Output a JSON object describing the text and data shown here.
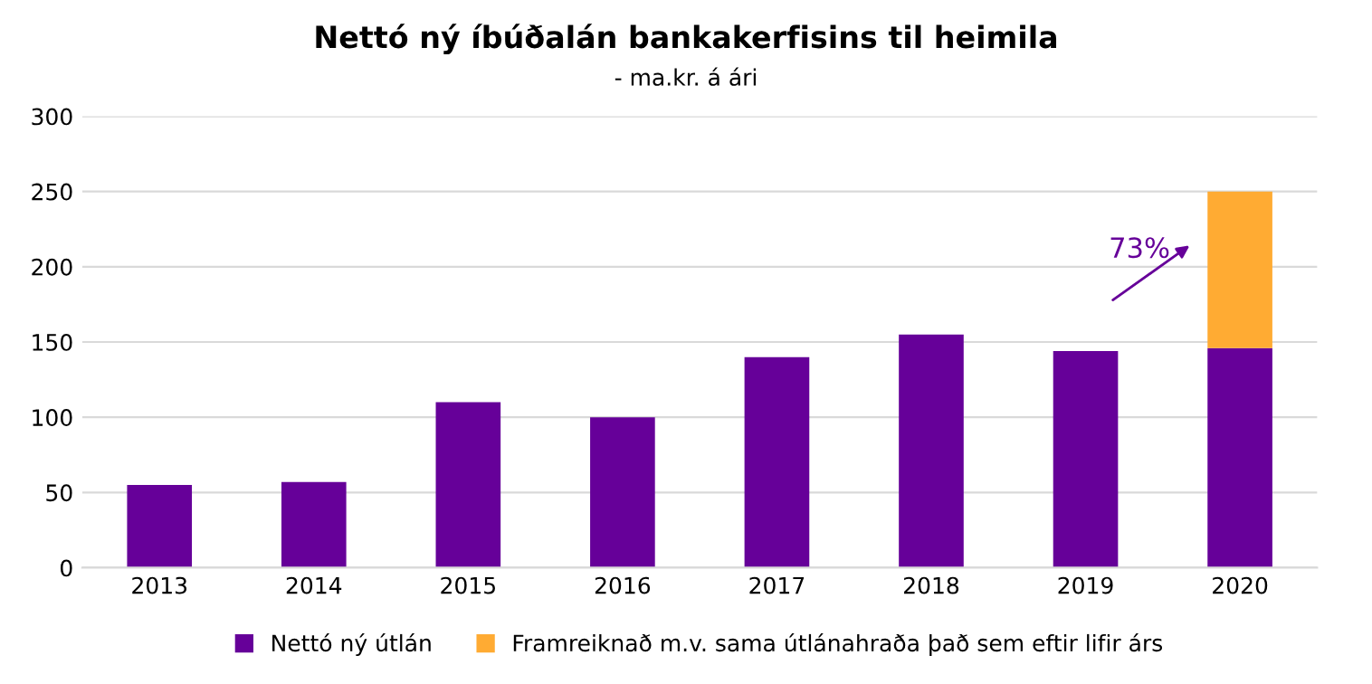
{
  "chart_data": {
    "type": "bar",
    "title": "Nettó ný íbúðalán bankakerfisins til heimila",
    "subtitle": "- ma.kr. á ári",
    "categories": [
      "2013",
      "2014",
      "2015",
      "2016",
      "2017",
      "2018",
      "2019",
      "2020"
    ],
    "stacked": true,
    "series": [
      {
        "name": "Nettó ný útlán",
        "color": "#660099",
        "values": [
          55,
          57,
          110,
          100,
          140,
          155,
          144,
          146
        ]
      },
      {
        "name": "Framreiknað m.v. sama útlánahraða það sem eftir lifir árs",
        "color": "#ffab33",
        "values": [
          null,
          null,
          null,
          null,
          null,
          null,
          null,
          104
        ]
      }
    ],
    "annotations": [
      "73%"
    ],
    "ylim": [
      0,
      300
    ],
    "yticks": [
      0,
      50,
      100,
      150,
      200,
      250,
      300
    ],
    "grid": "y",
    "legend": "bottom"
  }
}
